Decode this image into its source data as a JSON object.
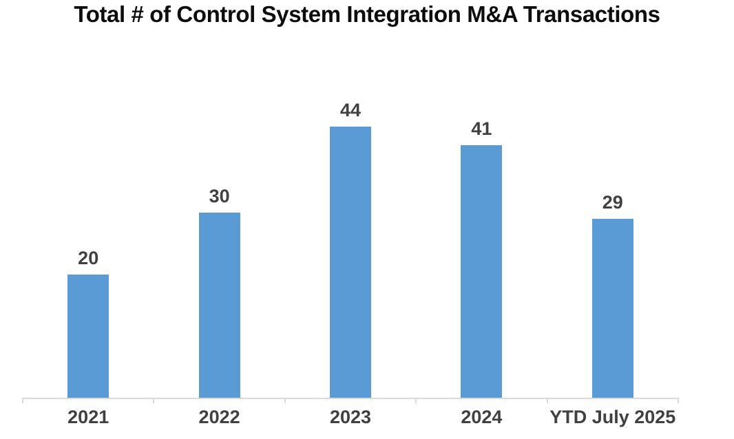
{
  "chart_data": {
    "type": "bar",
    "title": "Total # of Control System Integration M&A Transactions",
    "categories": [
      "2021",
      "2022",
      "2023",
      "2024",
      "YTD July 2025"
    ],
    "values": [
      20,
      30,
      44,
      41,
      29
    ],
    "data_labels": [
      "20",
      "30",
      "44",
      "41",
      "29"
    ],
    "xlabel": "",
    "ylabel": "",
    "ylim": [
      0,
      50
    ],
    "grid": false,
    "legend_position": "none",
    "y_axis_visible": false,
    "colors": {
      "bar": "#5B9BD5",
      "data_label": "#404040",
      "axis_label": "#404040",
      "axis_line": "#D9D9D9",
      "title": "#0D0D0D",
      "background": "#FFFFFF"
    }
  }
}
